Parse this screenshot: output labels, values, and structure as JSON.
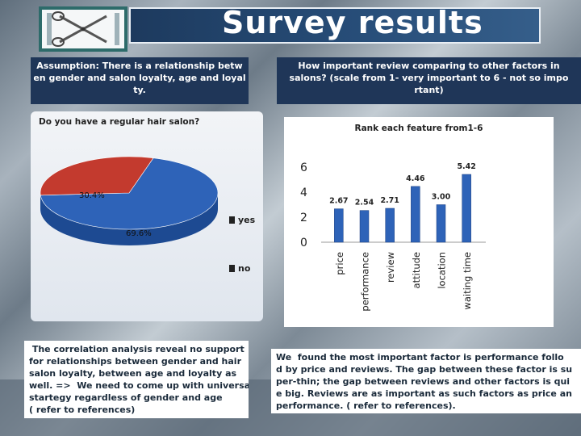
{
  "slide": {
    "title": "Survey results",
    "left_header": [
      "Assumption: There is a relationship betw",
      "en gender and salon loyalty, age and loyal",
      "ty."
    ],
    "right_header": [
      "How important review comparing to other factors in",
      "salons?  (scale from 1- very important to 6 - not so impo",
      "rtant)"
    ],
    "left_conclusion": [
      " The correlation analysis reveal no support",
      "for relationships between gender and hair",
      "salon loyalty, between age and loyalty as",
      "well. =>  We need to come up with universal",
      "startegy regardless of gender and age",
      "( refer to references)"
    ],
    "right_conclusion": [
      "We  found the most important factor is performance follo",
      "d by price and reviews. The gap between these factor is su",
      "per-thin; the gap between reviews and other factors is qui",
      "e big. Reviews are as important as such factors as price an",
      "performance. ( refer to references)."
    ]
  },
  "chart_data": [
    {
      "type": "pie",
      "title": "Do you have a regular hair salon?",
      "categories": [
        "yes",
        "no"
      ],
      "values": [
        69.6,
        30.4
      ],
      "data_labels": [
        "69.6%",
        "30.4%"
      ],
      "colors": [
        "#2e63b8",
        "#c33a2e"
      ],
      "legend": "right"
    },
    {
      "type": "bar",
      "title": "Rank each feature from1-6",
      "categories": [
        "price",
        "performance",
        "review",
        "attitude",
        "location",
        "waiting time"
      ],
      "values": [
        2.67,
        2.54,
        2.71,
        4.46,
        3.0,
        5.42
      ],
      "data_labels": [
        "2.67",
        "2.54",
        "2.71",
        "4.46",
        "3.00",
        "5.42"
      ],
      "ylim": [
        0,
        6
      ],
      "yticks": [
        "0",
        "2",
        "4",
        "6"
      ],
      "color": "#2e63b8"
    }
  ]
}
